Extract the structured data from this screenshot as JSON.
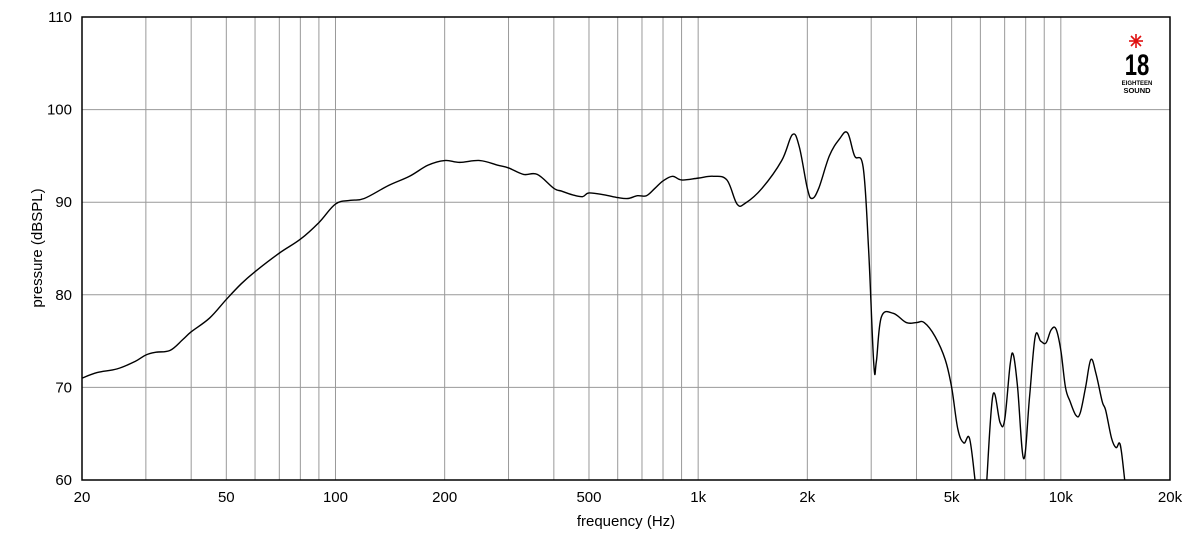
{
  "chart_data": {
    "type": "line",
    "xlabel": "frequency (Hz)",
    "ylabel": "pressure (dBSPL)",
    "x_scale": "log",
    "xlim": [
      20,
      20000
    ],
    "ylim": [
      60,
      110
    ],
    "grid": true,
    "x_tick_values": [
      20,
      50,
      100,
      200,
      500,
      1000,
      2000,
      5000,
      10000,
      20000
    ],
    "x_tick_labels": [
      "20",
      "50",
      "100",
      "200",
      "500",
      "1k",
      "2k",
      "5k",
      "10k",
      "20k"
    ],
    "y_tick_values": [
      60,
      70,
      80,
      90,
      100,
      110
    ],
    "y_tick_labels": [
      "60",
      "70",
      "80",
      "90",
      "100",
      "110"
    ],
    "series": [
      {
        "color": "#000000",
        "points": [
          [
            20,
            71.0
          ],
          [
            22,
            71.6
          ],
          [
            25,
            72.0
          ],
          [
            28,
            72.8
          ],
          [
            30,
            73.5
          ],
          [
            32,
            73.8
          ],
          [
            35,
            74.0
          ],
          [
            38,
            75.2
          ],
          [
            40,
            76.0
          ],
          [
            45,
            77.5
          ],
          [
            50,
            79.5
          ],
          [
            55,
            81.2
          ],
          [
            60,
            82.5
          ],
          [
            70,
            84.5
          ],
          [
            80,
            86.0
          ],
          [
            90,
            87.8
          ],
          [
            100,
            89.8
          ],
          [
            110,
            90.2
          ],
          [
            120,
            90.4
          ],
          [
            140,
            91.8
          ],
          [
            160,
            92.8
          ],
          [
            180,
            94.0
          ],
          [
            200,
            94.5
          ],
          [
            220,
            94.3
          ],
          [
            250,
            94.5
          ],
          [
            280,
            94.0
          ],
          [
            300,
            93.7
          ],
          [
            330,
            93.0
          ],
          [
            360,
            93.0
          ],
          [
            400,
            91.5
          ],
          [
            420,
            91.2
          ],
          [
            450,
            90.8
          ],
          [
            480,
            90.6
          ],
          [
            500,
            91.0
          ],
          [
            550,
            90.8
          ],
          [
            600,
            90.5
          ],
          [
            640,
            90.4
          ],
          [
            680,
            90.7
          ],
          [
            720,
            90.7
          ],
          [
            760,
            91.5
          ],
          [
            800,
            92.3
          ],
          [
            850,
            92.8
          ],
          [
            900,
            92.4
          ],
          [
            1000,
            92.6
          ],
          [
            1100,
            92.8
          ],
          [
            1200,
            92.4
          ],
          [
            1280,
            89.8
          ],
          [
            1350,
            89.9
          ],
          [
            1500,
            91.5
          ],
          [
            1700,
            94.5
          ],
          [
            1820,
            97.3
          ],
          [
            1900,
            96.0
          ],
          [
            2000,
            91.5
          ],
          [
            2060,
            90.4
          ],
          [
            2150,
            91.5
          ],
          [
            2300,
            95.0
          ],
          [
            2450,
            96.8
          ],
          [
            2580,
            97.5
          ],
          [
            2700,
            95.0
          ],
          [
            2850,
            93.8
          ],
          [
            2950,
            85.0
          ],
          [
            3050,
            72.5
          ],
          [
            3100,
            72.8
          ],
          [
            3200,
            77.6
          ],
          [
            3450,
            78.0
          ],
          [
            3750,
            77.0
          ],
          [
            4000,
            77.0
          ],
          [
            4200,
            77.0
          ],
          [
            4500,
            75.5
          ],
          [
            4800,
            73.0
          ],
          [
            5000,
            70.0
          ],
          [
            5200,
            65.5
          ],
          [
            5400,
            64.0
          ],
          [
            5600,
            64.5
          ],
          [
            5800,
            60.0
          ]
        ]
      },
      {
        "color": "#000000",
        "points": [
          [
            6250,
            60.0
          ],
          [
            6500,
            69.2
          ],
          [
            6800,
            66.2
          ],
          [
            7000,
            66.5
          ],
          [
            7250,
            72.5
          ],
          [
            7400,
            73.5
          ],
          [
            7600,
            70.0
          ],
          [
            7900,
            62.3
          ],
          [
            8200,
            69.0
          ],
          [
            8500,
            75.5
          ],
          [
            8800,
            75.0
          ],
          [
            9100,
            74.8
          ],
          [
            9400,
            76.2
          ],
          [
            9700,
            76.3
          ],
          [
            10000,
            74.0
          ],
          [
            10300,
            70.0
          ],
          [
            10600,
            68.5
          ],
          [
            11000,
            67.0
          ],
          [
            11300,
            67.2
          ],
          [
            11700,
            70.0
          ],
          [
            12100,
            73.0
          ],
          [
            12500,
            71.5
          ],
          [
            13000,
            68.5
          ],
          [
            13300,
            67.5
          ],
          [
            13800,
            64.5
          ],
          [
            14200,
            63.5
          ],
          [
            14500,
            64.0
          ],
          [
            14700,
            63.0
          ],
          [
            15000,
            60.0
          ]
        ]
      }
    ]
  },
  "logo": {
    "number": "18",
    "line1": "EIGHTEEN",
    "line2": "SOUND",
    "star_color": "#e01010"
  }
}
